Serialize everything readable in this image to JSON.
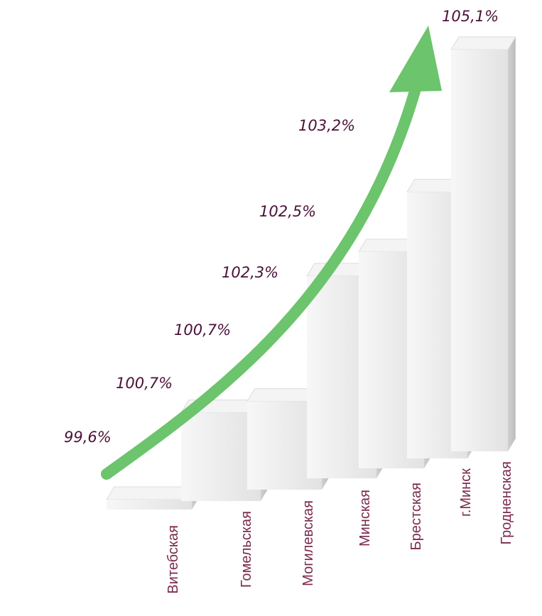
{
  "chart_data": {
    "type": "bar",
    "categories": [
      "Витебская",
      "Гомельская",
      "Могилевская",
      "Минская",
      "Брестская",
      "г.Минск",
      "Гродненская"
    ],
    "values": [
      99.6,
      100.7,
      100.7,
      102.3,
      102.5,
      103.2,
      105.1
    ],
    "value_labels": [
      "99,6%",
      "100,7%",
      "100,7%",
      "102,3%",
      "102,5%",
      "103,2%",
      "105,1%"
    ],
    "color": "#ececec"
  }
}
